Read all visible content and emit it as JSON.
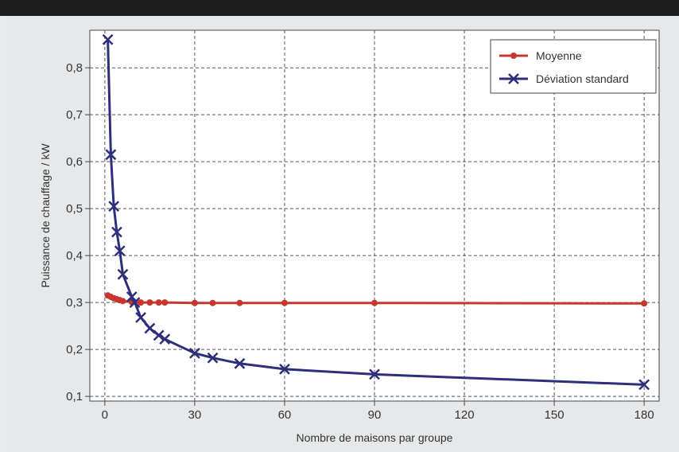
{
  "chart_data": {
    "type": "line",
    "title": "",
    "xlabel": "Nombre de maisons par groupe",
    "ylabel": "Puissance de chauffage / kW",
    "xlim": [
      -5,
      185
    ],
    "ylim": [
      0.09,
      0.88
    ],
    "xticks": [
      0,
      30,
      60,
      90,
      120,
      150,
      180
    ],
    "xtick_labels": [
      "0",
      "30",
      "60",
      "90",
      "120",
      "150",
      "180"
    ],
    "yticks": [
      0.1,
      0.2,
      0.3,
      0.4,
      0.5,
      0.6,
      0.7,
      0.8
    ],
    "ytick_labels": [
      "0,1",
      "0,2",
      "0,3",
      "0,4",
      "0,5",
      "0,6",
      "0,7",
      "0,8"
    ],
    "grid": true,
    "legend_position": "top-right",
    "series": [
      {
        "name": "Moyenne",
        "color": "#c8372d",
        "marker": "circle",
        "x": [
          1,
          2,
          3,
          4,
          5,
          6,
          9,
          12,
          15,
          18,
          20,
          30,
          36,
          45,
          60,
          90,
          180
        ],
        "y": [
          0.315,
          0.312,
          0.309,
          0.307,
          0.305,
          0.303,
          0.301,
          0.3,
          0.3,
          0.3,
          0.3,
          0.299,
          0.299,
          0.299,
          0.299,
          0.299,
          0.298
        ]
      },
      {
        "name": "Déviation standard",
        "color": "#2e2f7a",
        "marker": "x",
        "x": [
          1,
          2,
          3,
          4,
          5,
          6,
          9,
          10,
          12,
          15,
          18,
          20,
          30,
          36,
          45,
          60,
          90,
          180
        ],
        "y": [
          0.86,
          0.615,
          0.505,
          0.45,
          0.41,
          0.36,
          0.312,
          0.3,
          0.268,
          0.245,
          0.23,
          0.222,
          0.192,
          0.182,
          0.17,
          0.158,
          0.147,
          0.125
        ]
      }
    ]
  }
}
